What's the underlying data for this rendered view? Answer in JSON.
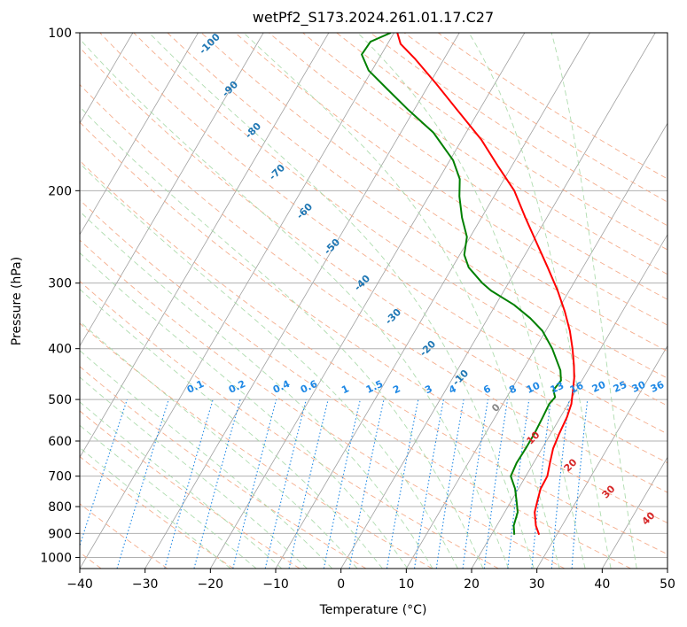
{
  "chart_data": {
    "type": "line",
    "subtype": "skew-t log-p diagram",
    "title": "wetPf2_S173.2024.261.01.17.C27",
    "xlabel": "Temperature (°C)",
    "ylabel": "Pressure (hPa)",
    "xlim": [
      -40,
      50
    ],
    "ylim": [
      1050,
      100
    ],
    "y_scale": "log",
    "grid": true,
    "x_ticks": [
      -40,
      -30,
      -20,
      -10,
      0,
      10,
      20,
      30,
      40,
      50
    ],
    "y_ticks": [
      100,
      200,
      300,
      400,
      500,
      600,
      700,
      800,
      900,
      1000
    ],
    "colors": {
      "temperature": "#ff0000",
      "dewpoint": "#008000",
      "isotherms": "#a0a0a0",
      "dry_adiabats": "#f4a582",
      "moist_adiabats": "#a6d8a6",
      "mixing_ratio": "#1e88e5",
      "dry_label": "#d62728",
      "moist_label": "#1f77b4",
      "lcl_label": "#888888"
    },
    "series": [
      {
        "key": "temperature",
        "points": [
          {
            "p": 905,
            "t": 27.3
          },
          {
            "p": 870,
            "t": 26.0
          },
          {
            "p": 820,
            "t": 24.6
          },
          {
            "p": 780,
            "t": 24.0
          },
          {
            "p": 740,
            "t": 23.4
          },
          {
            "p": 700,
            "t": 23.3
          },
          {
            "p": 660,
            "t": 22.5
          },
          {
            "p": 620,
            "t": 21.7
          },
          {
            "p": 580,
            "t": 21.3
          },
          {
            "p": 540,
            "t": 21.0
          },
          {
            "p": 510,
            "t": 20.5
          },
          {
            "p": 480,
            "t": 19.5
          },
          {
            "p": 455,
            "t": 18.6
          },
          {
            "p": 430,
            "t": 17.4
          },
          {
            "p": 400,
            "t": 15.7
          },
          {
            "p": 370,
            "t": 13.7
          },
          {
            "p": 340,
            "t": 11.2
          },
          {
            "p": 310,
            "t": 8.2
          },
          {
            "p": 280,
            "t": 4.6
          },
          {
            "p": 250,
            "t": 0.5
          },
          {
            "p": 225,
            "t": -3.3
          },
          {
            "p": 200,
            "t": -7.4
          },
          {
            "p": 180,
            "t": -12.0
          },
          {
            "p": 160,
            "t": -17.0
          },
          {
            "p": 140,
            "t": -23.5
          },
          {
            "p": 125,
            "t": -29.0
          },
          {
            "p": 112,
            "t": -34.5
          },
          {
            "p": 105,
            "t": -38.0
          },
          {
            "p": 100,
            "t": -39.5
          }
        ]
      },
      {
        "key": "dewpoint",
        "points": [
          {
            "p": 905,
            "t": 23.5
          },
          {
            "p": 870,
            "t": 22.6
          },
          {
            "p": 820,
            "t": 22.0
          },
          {
            "p": 780,
            "t": 20.8
          },
          {
            "p": 740,
            "t": 19.5
          },
          {
            "p": 700,
            "t": 17.7
          },
          {
            "p": 660,
            "t": 17.4
          },
          {
            "p": 620,
            "t": 17.5
          },
          {
            "p": 580,
            "t": 17.5
          },
          {
            "p": 540,
            "t": 17.3
          },
          {
            "p": 510,
            "t": 17.1
          },
          {
            "p": 495,
            "t": 17.4
          },
          {
            "p": 480,
            "t": 16.5
          },
          {
            "p": 460,
            "t": 16.8
          },
          {
            "p": 440,
            "t": 15.8
          },
          {
            "p": 400,
            "t": 12.6
          },
          {
            "p": 370,
            "t": 9.5
          },
          {
            "p": 350,
            "t": 6.5
          },
          {
            "p": 330,
            "t": 2.8
          },
          {
            "p": 310,
            "t": -2.0
          },
          {
            "p": 300,
            "t": -4.0
          },
          {
            "p": 280,
            "t": -7.5
          },
          {
            "p": 265,
            "t": -9.3
          },
          {
            "p": 245,
            "t": -10.5
          },
          {
            "p": 225,
            "t": -13.0
          },
          {
            "p": 205,
            "t": -15.3
          },
          {
            "p": 190,
            "t": -16.8
          },
          {
            "p": 175,
            "t": -19.5
          },
          {
            "p": 155,
            "t": -25.0
          },
          {
            "p": 140,
            "t": -31.0
          },
          {
            "p": 128,
            "t": -36.0
          },
          {
            "p": 118,
            "t": -40.5
          },
          {
            "p": 110,
            "t": -43.0
          },
          {
            "p": 104,
            "t": -42.8
          },
          {
            "p": 100,
            "t": -40.5
          }
        ]
      }
    ],
    "mixing_ratio_labels": [
      "0.1",
      "0.2",
      "0.4",
      "0.6",
      "1",
      "1.5",
      "2",
      "3",
      "4",
      "6",
      "8",
      "10",
      "13",
      "16",
      "20",
      "25",
      "30",
      "36"
    ],
    "mixing_ratio_values": [
      0.1,
      0.2,
      0.4,
      0.6,
      1,
      1.5,
      2,
      3,
      4,
      6,
      8,
      10,
      13,
      16,
      20,
      25,
      30,
      36
    ],
    "moist_adiabat_labels": [
      "-100",
      "-90",
      "-80",
      "-70",
      "-60",
      "-50",
      "-40",
      "-30",
      "-20",
      "-10",
      "0"
    ],
    "moist_adiabat_values": [
      -100,
      -90,
      -80,
      -70,
      -60,
      -50,
      -40,
      -30,
      -20,
      -10,
      0
    ],
    "dry_adiabat_labels": [
      "10",
      "20",
      "30",
      "40"
    ],
    "dry_adiabat_values": [
      10,
      20,
      30,
      40
    ]
  }
}
